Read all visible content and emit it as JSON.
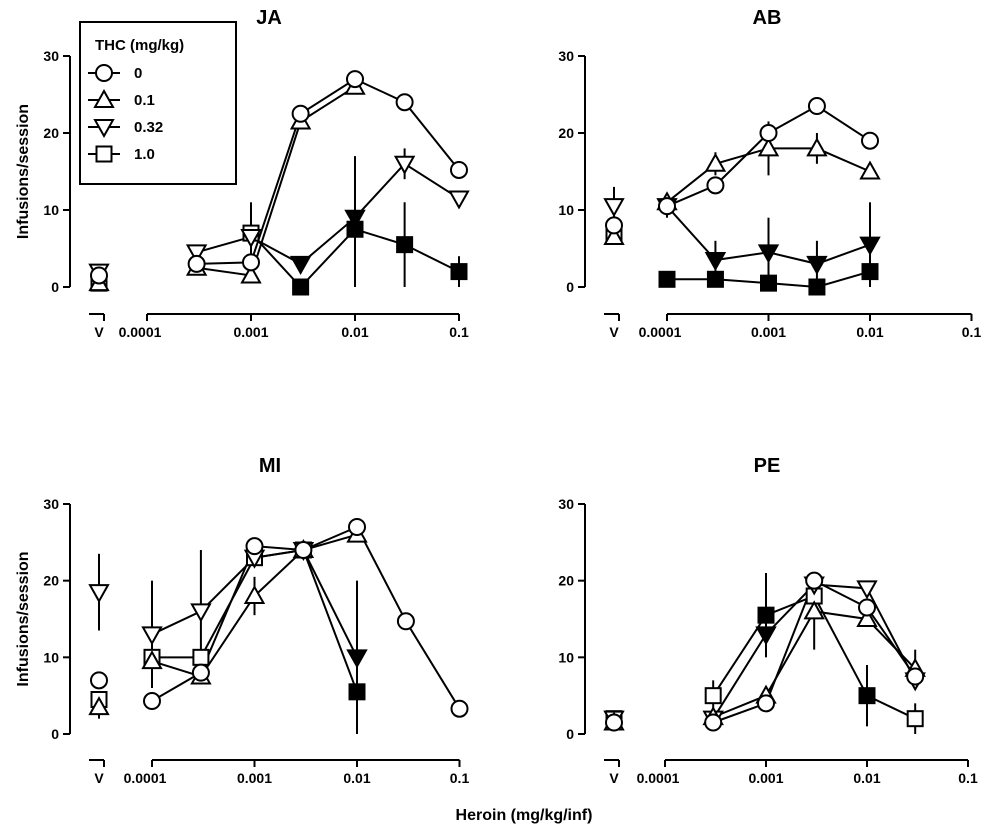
{
  "figure": {
    "x_axis_label": "Heroin (mg/kg/inf)",
    "y_axis_label": "Infusions/session"
  },
  "legend": {
    "title": "THC (mg/kg)",
    "entries": [
      {
        "label": "0",
        "marker": "circle"
      },
      {
        "label": "0.1",
        "marker": "triangle-up"
      },
      {
        "label": "0.32",
        "marker": "triangle-down"
      },
      {
        "label": "1.0",
        "marker": "square"
      }
    ]
  },
  "chart_data": [
    {
      "type": "line",
      "title": "JA",
      "xscale": "log",
      "xlim": [
        0.0001,
        0.1
      ],
      "xticks": [
        "V",
        "0.0001",
        "0.001",
        "0.01",
        "0.1"
      ],
      "ylim": [
        0,
        30
      ],
      "yticks": [
        "0",
        "10",
        "20",
        "30"
      ],
      "ylabel": "Infusions/session",
      "vehicle": [
        {
          "series": "0",
          "y": 1.5
        },
        {
          "series": "0.1",
          "y": 0.5
        },
        {
          "series": "0.32",
          "y": 2
        },
        {
          "series": "1.0",
          "y": 0.5
        }
      ],
      "series": [
        {
          "name": "0",
          "marker": "circle",
          "fill": "open",
          "points": [
            {
              "x": 0.0003,
              "y": 3
            },
            {
              "x": 0.001,
              "y": 3.2
            },
            {
              "x": 0.003,
              "y": 22.5
            },
            {
              "x": 0.01,
              "y": 27
            },
            {
              "x": 0.03,
              "y": 24
            },
            {
              "x": 0.1,
              "y": 15.2
            }
          ]
        },
        {
          "name": "0.1",
          "marker": "triangle-up",
          "fill": "open",
          "points": [
            {
              "x": 0.0003,
              "y": 2.5
            },
            {
              "x": 0.001,
              "y": 1.5
            },
            {
              "x": 0.003,
              "y": 21.5
            },
            {
              "x": 0.01,
              "y": 26
            }
          ]
        },
        {
          "name": "0.32",
          "marker": "triangle-down",
          "points": [
            {
              "x": 0.0003,
              "y": 4.5,
              "fill": "open"
            },
            {
              "x": 0.001,
              "y": 6.5,
              "fill": "open",
              "err": 4
            },
            {
              "x": 0.003,
              "y": 3,
              "fill": "solid"
            },
            {
              "x": 0.01,
              "y": 9,
              "fill": "solid",
              "err": 8
            },
            {
              "x": 0.03,
              "y": 16,
              "fill": "open",
              "err": 2
            },
            {
              "x": 0.1,
              "y": 11.5,
              "fill": "open"
            }
          ]
        },
        {
          "name": "1.0",
          "marker": "square",
          "points": [
            {
              "x": 0.001,
              "y": 7,
              "fill": "open",
              "err": 4
            },
            {
              "x": 0.003,
              "y": 0,
              "fill": "solid"
            },
            {
              "x": 0.01,
              "y": 7.5,
              "fill": "solid",
              "err": 7.5
            },
            {
              "x": 0.03,
              "y": 5.5,
              "fill": "solid",
              "err": 5.5
            },
            {
              "x": 0.1,
              "y": 2,
              "fill": "solid",
              "err": 2
            }
          ]
        }
      ]
    },
    {
      "type": "line",
      "title": "AB",
      "xscale": "log",
      "xlim": [
        0.0001,
        0.1
      ],
      "xticks": [
        "V",
        "0.0001",
        "0.001",
        "0.01",
        "0.1"
      ],
      "ylim": [
        0,
        30
      ],
      "yticks": [
        "0",
        "10",
        "20",
        "30"
      ],
      "vehicle": [
        {
          "series": "0",
          "y": 8
        },
        {
          "series": "0.1",
          "y": 6.5
        },
        {
          "series": "0.32",
          "y": 10.5,
          "err": 2.5
        },
        {
          "series": "1.0",
          "y": 7
        }
      ],
      "series": [
        {
          "name": "0",
          "marker": "circle",
          "fill": "open",
          "points": [
            {
              "x": 0.0001,
              "y": 10.5
            },
            {
              "x": 0.0003,
              "y": 13.2
            },
            {
              "x": 0.001,
              "y": 20
            },
            {
              "x": 0.003,
              "y": 23.5
            },
            {
              "x": 0.01,
              "y": 19
            }
          ]
        },
        {
          "name": "0.1",
          "marker": "triangle-up",
          "fill": "open",
          "points": [
            {
              "x": 0.0001,
              "y": 11
            },
            {
              "x": 0.0003,
              "y": 16,
              "err": 1.5
            },
            {
              "x": 0.001,
              "y": 18,
              "err": 3.5
            },
            {
              "x": 0.003,
              "y": 18,
              "err": 2
            },
            {
              "x": 0.01,
              "y": 15
            }
          ]
        },
        {
          "name": "0.32",
          "marker": "triangle-down",
          "fill": "solid",
          "points": [
            {
              "x": 0.0001,
              "y": 10.5,
              "err": 1.5
            },
            {
              "x": 0.0003,
              "y": 3.5,
              "err": 2.5
            },
            {
              "x": 0.001,
              "y": 4.5,
              "err": 4.5
            },
            {
              "x": 0.003,
              "y": 3,
              "err": 3
            },
            {
              "x": 0.01,
              "y": 5.5,
              "err": 5.5
            }
          ]
        },
        {
          "name": "1.0",
          "marker": "square",
          "fill": "solid",
          "points": [
            {
              "x": 0.0001,
              "y": 1
            },
            {
              "x": 0.0003,
              "y": 1
            },
            {
              "x": 0.001,
              "y": 0.5
            },
            {
              "x": 0.003,
              "y": 0
            },
            {
              "x": 0.01,
              "y": 2,
              "err": 2
            }
          ]
        }
      ]
    },
    {
      "type": "line",
      "title": "MI",
      "xscale": "log",
      "xlim": [
        0.0001,
        0.1
      ],
      "xticks": [
        "V",
        "0.0001",
        "0.001",
        "0.01",
        "0.1"
      ],
      "ylim": [
        0,
        30
      ],
      "yticks": [
        "0",
        "10",
        "20",
        "30"
      ],
      "ylabel": "Infusions/session",
      "vehicle": [
        {
          "series": "0",
          "y": 7
        },
        {
          "series": "0.1",
          "y": 3.5,
          "err": 1.5
        },
        {
          "series": "0.32",
          "y": 18.5,
          "err": 5
        },
        {
          "series": "1.0",
          "y": 4.5
        }
      ],
      "series": [
        {
          "name": "0",
          "marker": "circle",
          "fill": "open",
          "points": [
            {
              "x": 0.0001,
              "y": 4.3
            },
            {
              "x": 0.0003,
              "y": 8
            },
            {
              "x": 0.001,
              "y": 24.5
            },
            {
              "x": 0.003,
              "y": 24
            },
            {
              "x": 0.01,
              "y": 27
            },
            {
              "x": 0.03,
              "y": 14.7
            },
            {
              "x": 0.1,
              "y": 3.3
            }
          ]
        },
        {
          "name": "0.1",
          "marker": "triangle-up",
          "fill": "open",
          "points": [
            {
              "x": 0.0001,
              "y": 9.5
            },
            {
              "x": 0.0003,
              "y": 7.5
            },
            {
              "x": 0.001,
              "y": 18,
              "err": 2.5
            },
            {
              "x": 0.003,
              "y": 24
            },
            {
              "x": 0.01,
              "y": 26
            }
          ]
        },
        {
          "name": "0.32",
          "marker": "triangle-down",
          "points": [
            {
              "x": 0.0001,
              "y": 13,
              "fill": "open",
              "err": 7
            },
            {
              "x": 0.0003,
              "y": 16,
              "fill": "open",
              "err": 8
            },
            {
              "x": 0.001,
              "y": 23,
              "fill": "open"
            },
            {
              "x": 0.003,
              "y": 24,
              "fill": "open"
            },
            {
              "x": 0.01,
              "y": 10,
              "fill": "solid",
              "err": 10
            }
          ]
        },
        {
          "name": "1.0",
          "marker": "square",
          "points": [
            {
              "x": 0.0001,
              "y": 10,
              "fill": "open"
            },
            {
              "x": 0.0003,
              "y": 10,
              "fill": "open"
            },
            {
              "x": 0.001,
              "y": 23,
              "fill": "open"
            },
            {
              "x": 0.003,
              "y": 24,
              "fill": "open"
            },
            {
              "x": 0.01,
              "y": 5.5,
              "fill": "solid",
              "err": 1.5
            }
          ]
        }
      ]
    },
    {
      "type": "line",
      "title": "PE",
      "xscale": "log",
      "xlim": [
        0.0001,
        0.1
      ],
      "xticks": [
        "V",
        "0.0001",
        "0.001",
        "0.01",
        "0.1"
      ],
      "ylim": [
        0,
        30
      ],
      "yticks": [
        "0",
        "10",
        "20",
        "30"
      ],
      "vehicle": [
        {
          "series": "0",
          "y": 1.5
        },
        {
          "series": "0.1",
          "y": 1.5
        },
        {
          "series": "0.32",
          "y": 2
        },
        {
          "series": "1.0",
          "y": 2
        }
      ],
      "series": [
        {
          "name": "0",
          "marker": "circle",
          "fill": "open",
          "points": [
            {
              "x": 0.0003,
              "y": 1.5
            },
            {
              "x": 0.001,
              "y": 4
            },
            {
              "x": 0.003,
              "y": 20
            },
            {
              "x": 0.01,
              "y": 16.5
            },
            {
              "x": 0.03,
              "y": 7.5
            }
          ]
        },
        {
          "name": "0.1",
          "marker": "triangle-up",
          "fill": "open",
          "points": [
            {
              "x": 0.0003,
              "y": 2.2
            },
            {
              "x": 0.001,
              "y": 5
            },
            {
              "x": 0.003,
              "y": 16,
              "err": 5
            },
            {
              "x": 0.01,
              "y": 15
            },
            {
              "x": 0.03,
              "y": 8.5,
              "err": 2.5
            }
          ]
        },
        {
          "name": "0.32",
          "marker": "triangle-down",
          "points": [
            {
              "x": 0.0003,
              "y": 2,
              "fill": "open"
            },
            {
              "x": 0.001,
              "y": 13,
              "fill": "solid"
            },
            {
              "x": 0.003,
              "y": 19.5,
              "fill": "open"
            },
            {
              "x": 0.01,
              "y": 19,
              "fill": "open"
            },
            {
              "x": 0.03,
              "y": 7,
              "fill": "open"
            }
          ]
        },
        {
          "name": "1.0",
          "marker": "square",
          "points": [
            {
              "x": 0.0003,
              "y": 5,
              "fill": "open",
              "err": 2
            },
            {
              "x": 0.001,
              "y": 15.5,
              "fill": "solid",
              "err": 5.5
            },
            {
              "x": 0.003,
              "y": 18,
              "fill": "open"
            },
            {
              "x": 0.01,
              "y": 5,
              "fill": "solid",
              "err": 4
            },
            {
              "x": 0.03,
              "y": 2,
              "fill": "open",
              "err": 2
            }
          ]
        }
      ]
    }
  ]
}
